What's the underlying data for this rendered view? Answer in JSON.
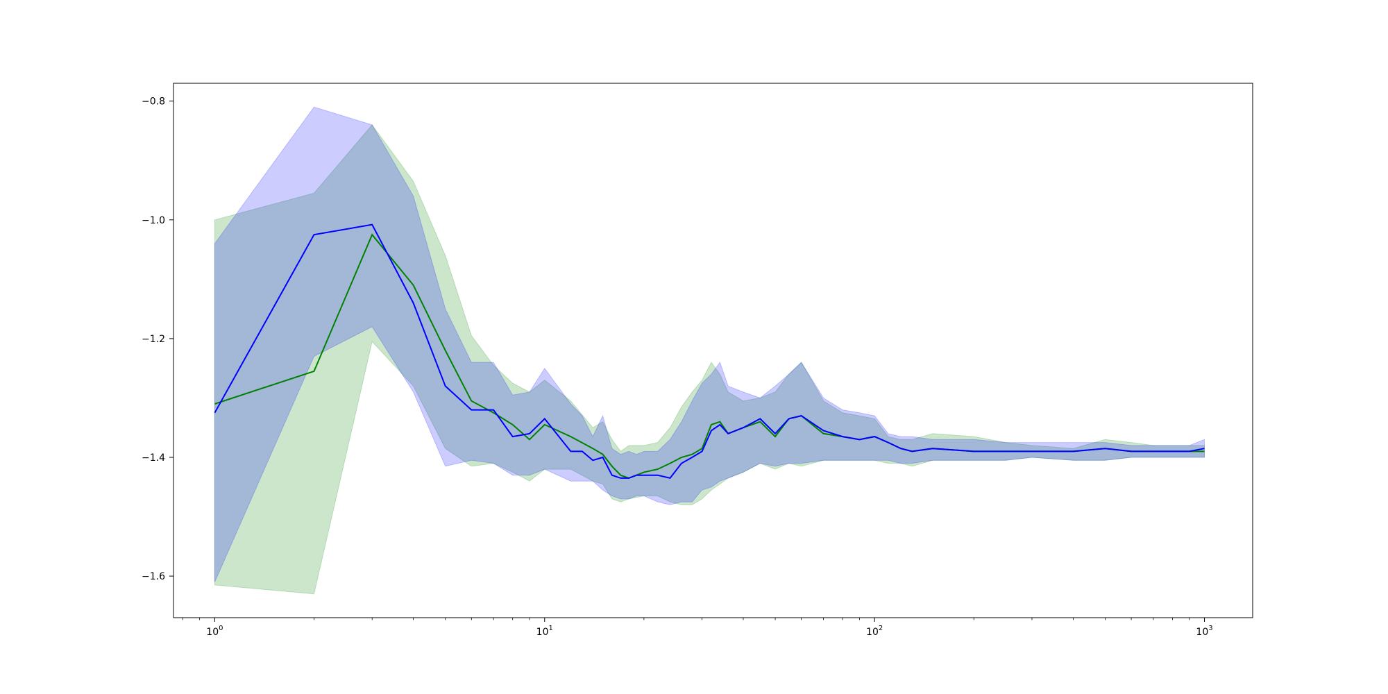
{
  "chart_data": {
    "type": "line",
    "xscale": "log",
    "xlim": [
      0.75,
      1400
    ],
    "ylim": [
      -1.67,
      -0.77
    ],
    "x_ticks": [
      {
        "value": 1,
        "base": "10",
        "exp": "0"
      },
      {
        "value": 10,
        "base": "10",
        "exp": "1"
      },
      {
        "value": 100,
        "base": "10",
        "exp": "2"
      },
      {
        "value": 1000,
        "base": "10",
        "exp": "3"
      }
    ],
    "y_ticks": [
      {
        "value": -0.8,
        "label": "−0.8"
      },
      {
        "value": -1.0,
        "label": "−1.0"
      },
      {
        "value": -1.2,
        "label": "−1.2"
      },
      {
        "value": -1.4,
        "label": "−1.4"
      },
      {
        "value": -1.6,
        "label": "−1.6"
      }
    ],
    "grid": false,
    "series": [
      {
        "color": "#008000",
        "band_color": "#008000",
        "band_opacity": 0.2,
        "x": [
          1,
          2,
          3,
          4,
          5,
          6,
          7,
          8,
          9,
          10,
          12,
          14,
          15,
          16,
          17,
          18,
          20,
          22,
          24,
          26,
          28,
          30,
          32,
          34,
          36,
          40,
          45,
          50,
          55,
          60,
          70,
          80,
          90,
          100,
          110,
          120,
          130,
          150,
          200,
          250,
          300,
          400,
          500,
          600,
          700,
          800,
          900,
          1000
        ],
        "mean": [
          -1.31,
          -1.255,
          -1.025,
          -1.11,
          -1.22,
          -1.305,
          -1.325,
          -1.345,
          -1.37,
          -1.345,
          -1.365,
          -1.385,
          -1.395,
          -1.415,
          -1.43,
          -1.435,
          -1.425,
          -1.42,
          -1.41,
          -1.4,
          -1.395,
          -1.385,
          -1.345,
          -1.34,
          -1.36,
          -1.35,
          -1.34,
          -1.365,
          -1.335,
          -1.33,
          -1.36,
          -1.365,
          -1.37,
          -1.365,
          -1.375,
          -1.385,
          -1.39,
          -1.385,
          -1.39,
          -1.39,
          -1.39,
          -1.39,
          -1.385,
          -1.39,
          -1.39,
          -1.39,
          -1.39,
          -1.39
        ],
        "upper": [
          -1.0,
          -0.955,
          -0.84,
          -0.935,
          -1.06,
          -1.195,
          -1.245,
          -1.275,
          -1.29,
          -1.27,
          -1.305,
          -1.35,
          -1.34,
          -1.37,
          -1.39,
          -1.38,
          -1.38,
          -1.375,
          -1.35,
          -1.315,
          -1.29,
          -1.27,
          -1.24,
          -1.26,
          -1.29,
          -1.305,
          -1.3,
          -1.29,
          -1.26,
          -1.24,
          -1.305,
          -1.325,
          -1.33,
          -1.335,
          -1.365,
          -1.37,
          -1.37,
          -1.36,
          -1.365,
          -1.375,
          -1.38,
          -1.385,
          -1.37,
          -1.375,
          -1.38,
          -1.38,
          -1.38,
          -1.38
        ],
        "lower": [
          -1.615,
          -1.63,
          -1.205,
          -1.28,
          -1.385,
          -1.415,
          -1.41,
          -1.425,
          -1.44,
          -1.42,
          -1.42,
          -1.44,
          -1.445,
          -1.47,
          -1.475,
          -1.47,
          -1.465,
          -1.465,
          -1.475,
          -1.48,
          -1.48,
          -1.47,
          -1.455,
          -1.445,
          -1.435,
          -1.425,
          -1.41,
          -1.42,
          -1.41,
          -1.415,
          -1.405,
          -1.405,
          -1.405,
          -1.405,
          -1.41,
          -1.41,
          -1.415,
          -1.405,
          -1.405,
          -1.405,
          -1.4,
          -1.405,
          -1.405,
          -1.4,
          -1.4,
          -1.4,
          -1.4,
          -1.4
        ]
      },
      {
        "color": "#0000ff",
        "band_color": "#0000ff",
        "band_opacity": 0.2,
        "x": [
          1,
          2,
          3,
          4,
          5,
          6,
          7,
          8,
          9,
          10,
          12,
          13,
          14,
          15,
          16,
          17,
          18,
          19,
          20,
          22,
          24,
          26,
          28,
          30,
          32,
          34,
          36,
          40,
          45,
          50,
          55,
          60,
          70,
          80,
          90,
          100,
          110,
          120,
          130,
          150,
          200,
          250,
          300,
          400,
          500,
          600,
          700,
          800,
          900,
          1000
        ],
        "mean": [
          -1.325,
          -1.025,
          -1.008,
          -1.14,
          -1.28,
          -1.32,
          -1.32,
          -1.365,
          -1.36,
          -1.335,
          -1.39,
          -1.39,
          -1.405,
          -1.4,
          -1.43,
          -1.435,
          -1.435,
          -1.43,
          -1.43,
          -1.43,
          -1.435,
          -1.41,
          -1.4,
          -1.39,
          -1.355,
          -1.345,
          -1.36,
          -1.35,
          -1.335,
          -1.36,
          -1.335,
          -1.33,
          -1.355,
          -1.365,
          -1.37,
          -1.365,
          -1.375,
          -1.385,
          -1.39,
          -1.385,
          -1.39,
          -1.39,
          -1.39,
          -1.39,
          -1.385,
          -1.39,
          -1.39,
          -1.39,
          -1.39,
          -1.385
        ],
        "upper": [
          -1.04,
          -0.81,
          -0.84,
          -0.96,
          -1.15,
          -1.24,
          -1.24,
          -1.295,
          -1.29,
          -1.25,
          -1.31,
          -1.33,
          -1.365,
          -1.33,
          -1.385,
          -1.395,
          -1.39,
          -1.395,
          -1.39,
          -1.39,
          -1.37,
          -1.34,
          -1.305,
          -1.275,
          -1.26,
          -1.24,
          -1.28,
          -1.29,
          -1.3,
          -1.28,
          -1.26,
          -1.24,
          -1.3,
          -1.32,
          -1.325,
          -1.33,
          -1.36,
          -1.365,
          -1.365,
          -1.37,
          -1.37,
          -1.375,
          -1.375,
          -1.375,
          -1.375,
          -1.38,
          -1.38,
          -1.38,
          -1.38,
          -1.37
        ],
        "lower": [
          -1.61,
          -1.23,
          -1.18,
          -1.29,
          -1.415,
          -1.405,
          -1.41,
          -1.43,
          -1.43,
          -1.42,
          -1.44,
          -1.44,
          -1.44,
          -1.455,
          -1.465,
          -1.47,
          -1.47,
          -1.465,
          -1.465,
          -1.475,
          -1.48,
          -1.475,
          -1.475,
          -1.455,
          -1.45,
          -1.44,
          -1.435,
          -1.425,
          -1.41,
          -1.415,
          -1.41,
          -1.41,
          -1.405,
          -1.405,
          -1.405,
          -1.405,
          -1.405,
          -1.41,
          -1.41,
          -1.405,
          -1.405,
          -1.405,
          -1.4,
          -1.405,
          -1.405,
          -1.4,
          -1.4,
          -1.4,
          -1.4,
          -1.4
        ]
      }
    ]
  }
}
